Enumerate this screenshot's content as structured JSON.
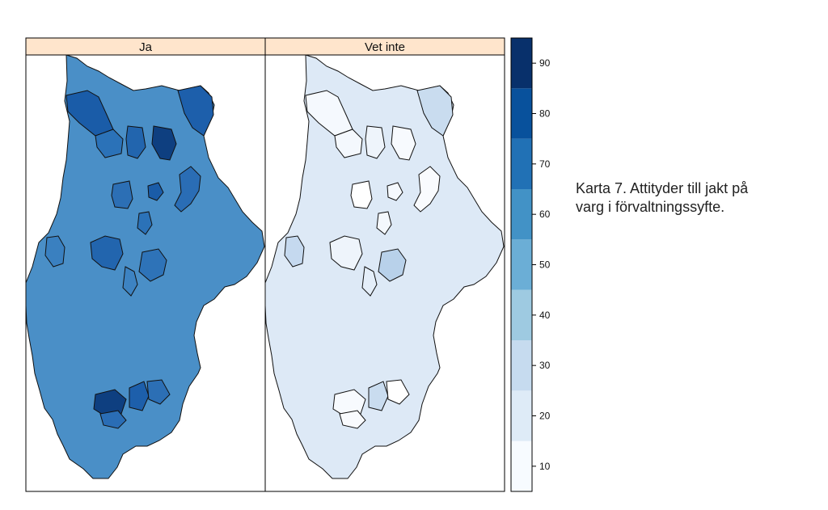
{
  "panels": [
    {
      "title": "Ja",
      "fill": "#4a8fc7",
      "regions": [
        "#1a5ca8",
        "#2b72b8",
        "#2265ae",
        "#0e3f80",
        "#1d5fab",
        "#2c6fb5",
        "#2a6db5",
        "#3a80c0",
        "#3d83c2",
        "#2e73b8"
      ]
    },
    {
      "title": "Vet inte",
      "fill": "#dde9f6",
      "regions": [
        "#f5f9fe",
        "#f4f8fd",
        "#eef4fb",
        "#f7fafe",
        "#c9dcef",
        "#ffffff",
        "#f9fbfe",
        "#c5d9ef",
        "#e4eef9",
        "#b8d1ea"
      ]
    }
  ],
  "legend": {
    "ticks": [
      "10",
      "20",
      "30",
      "40",
      "50",
      "60",
      "70",
      "80",
      "90"
    ],
    "colors": [
      "#f7fbff",
      "#deebf7",
      "#c6dbef",
      "#9ecae1",
      "#6baed6",
      "#4292c6",
      "#2171b5",
      "#08519c",
      "#08306b"
    ]
  },
  "caption": {
    "line1": "Karta 7. Attityder till jakt på",
    "line2": "varg i förvaltningssyfte."
  },
  "colors": {
    "strip": "#ffe5cc",
    "border": "#000000"
  }
}
